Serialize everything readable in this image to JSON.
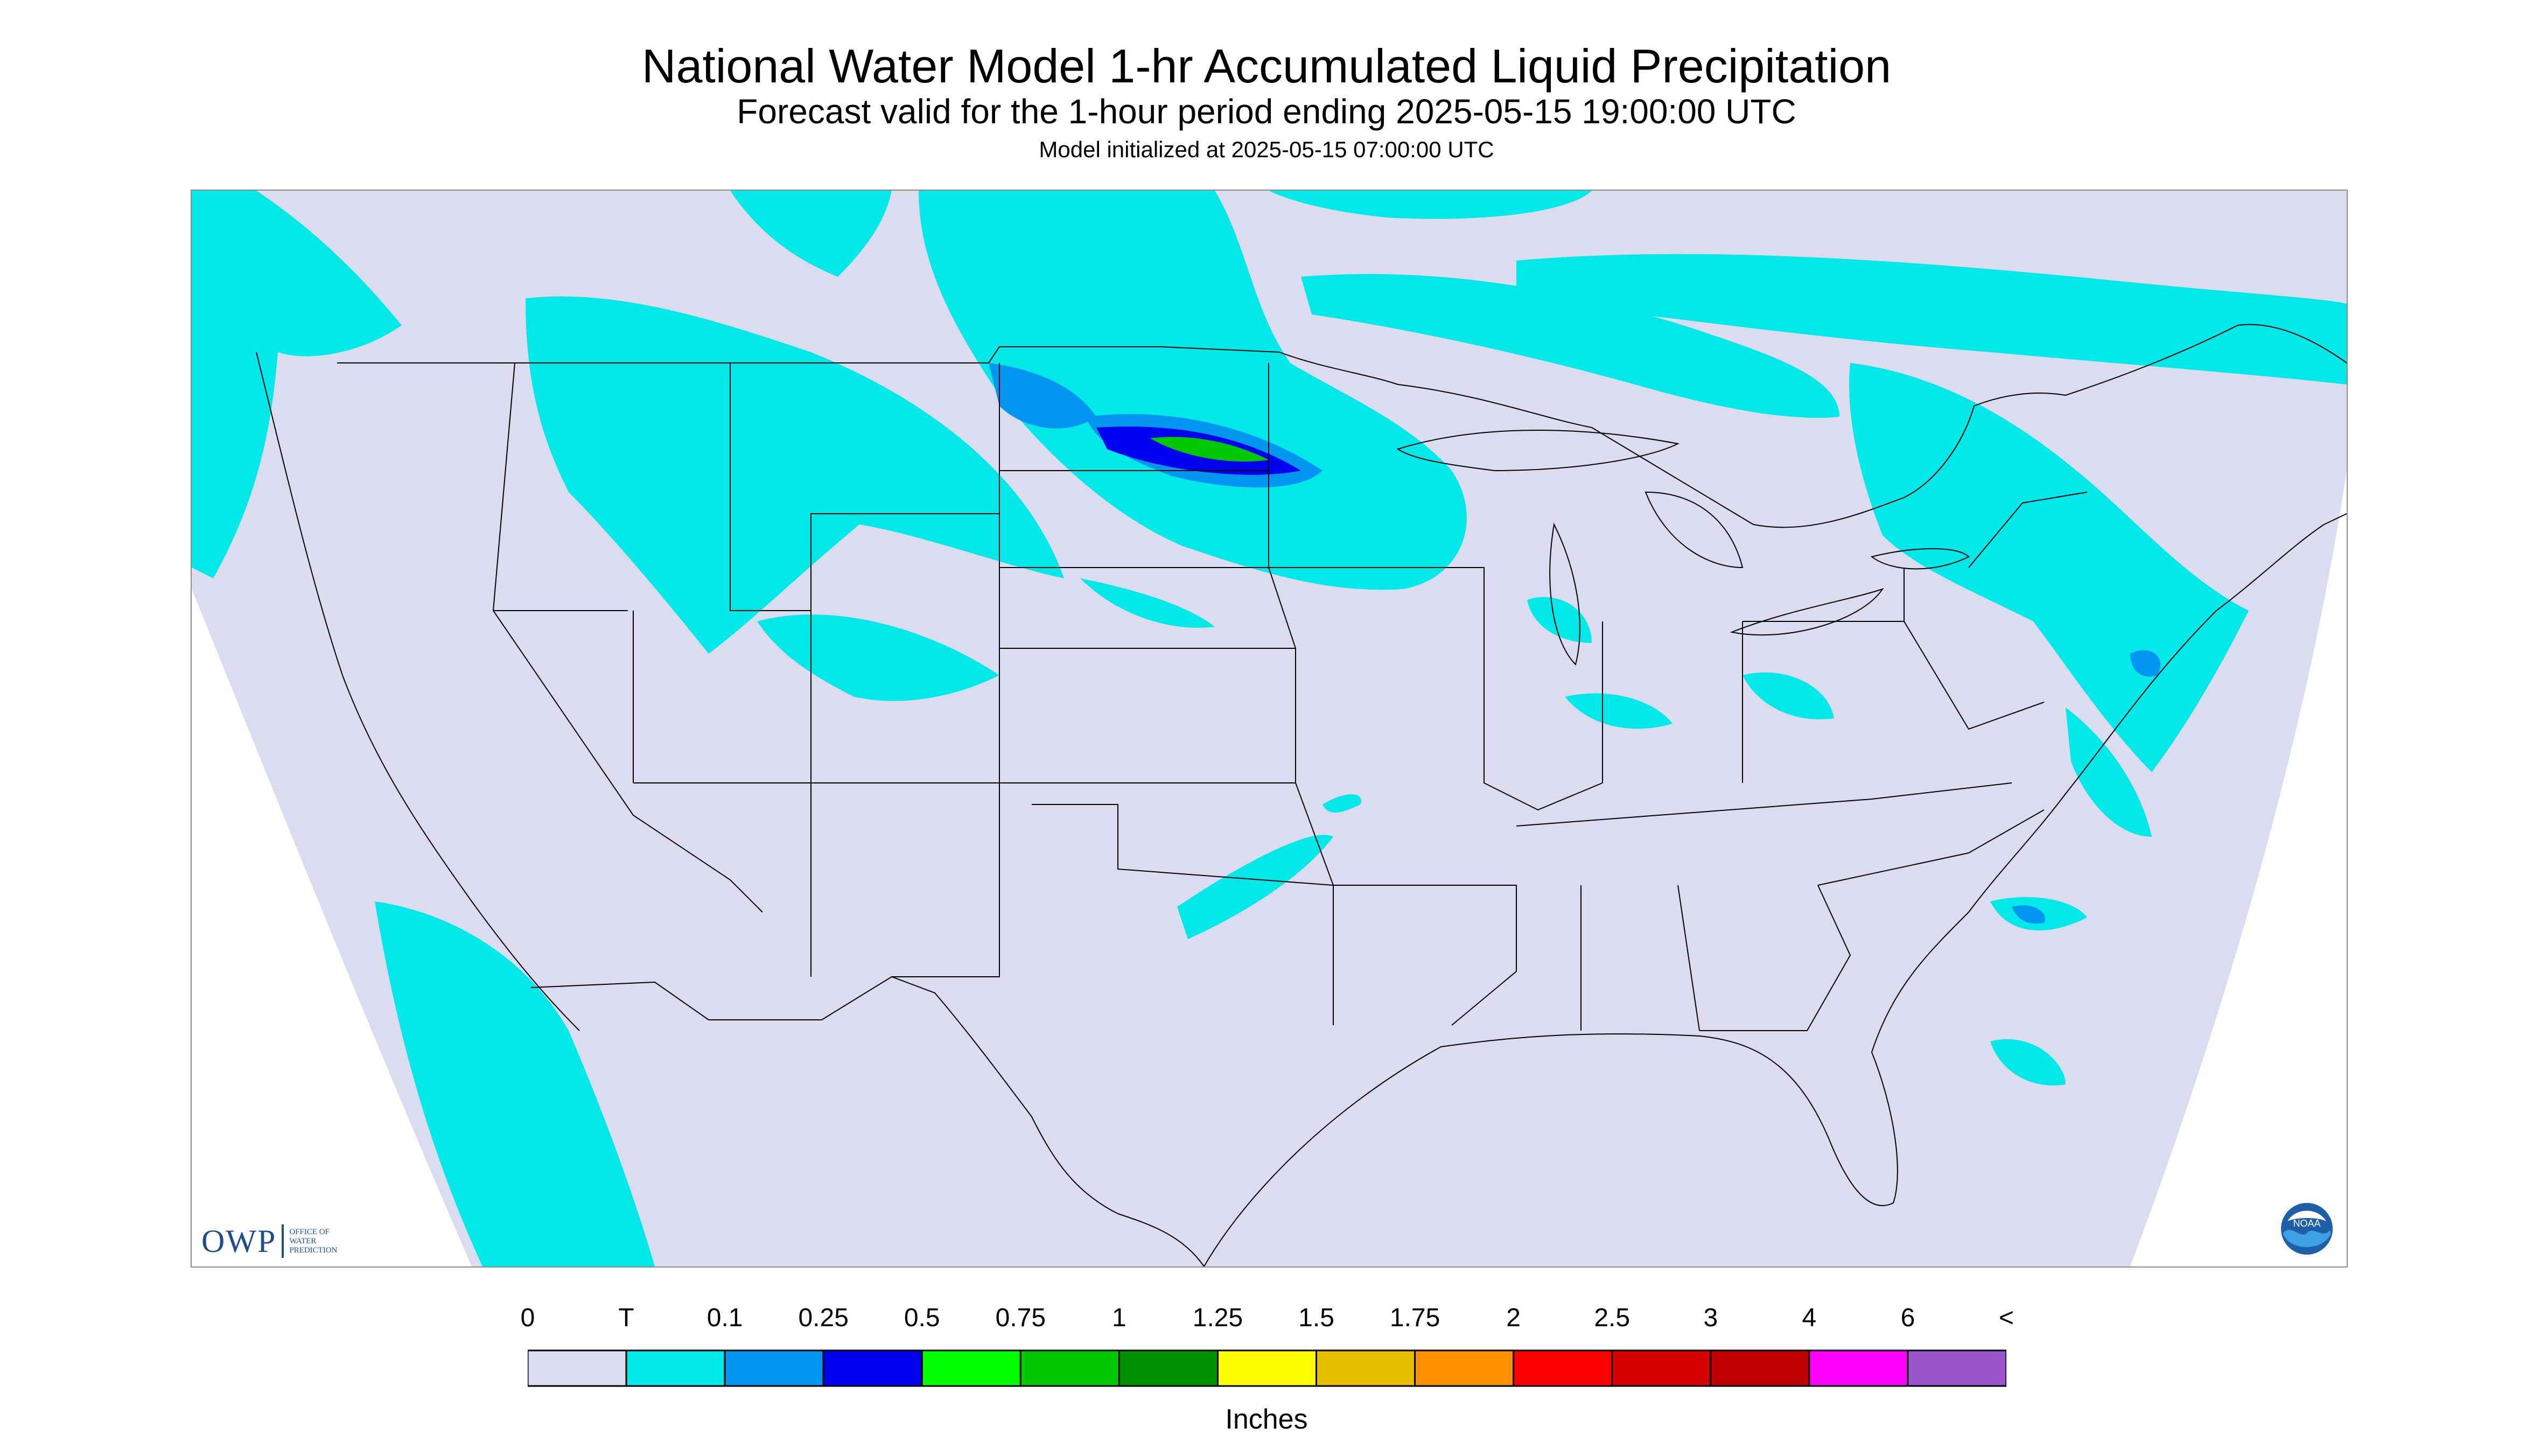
{
  "title": "National Water Model 1-hr Accumulated Liquid Precipitation",
  "subtitle": "Forecast valid for the 1-hour period ending 2025-05-15 19:00:00 UTC",
  "init_line": "Model initialized at 2025-05-15 07:00:00 UTC",
  "logo": {
    "owp_text": "OWP",
    "owp_small": [
      "OFFICE OF",
      "WATER",
      "PREDICTION"
    ],
    "noaa_text": "NOAA"
  },
  "legend": {
    "tick_labels": [
      "0",
      "T",
      "0.1",
      "0.25",
      "0.5",
      "0.75",
      "1",
      "1.25",
      "1.5",
      "1.75",
      "2",
      "2.5",
      "3",
      "4",
      "6",
      "<"
    ],
    "colors": [
      "#dcdcf0",
      "#00e8e8",
      "#0096f0",
      "#0000f0",
      "#00ff00",
      "#00c800",
      "#009000",
      "#ffff00",
      "#e6be00",
      "#ff9000",
      "#ff0000",
      "#d60000",
      "#c00000",
      "#ff00ff",
      "#9955c9"
    ],
    "units": "Inches"
  },
  "map": {
    "background_color": "#dcdcf0",
    "outside_color": "#ffffff",
    "line_color": "#000000"
  }
}
